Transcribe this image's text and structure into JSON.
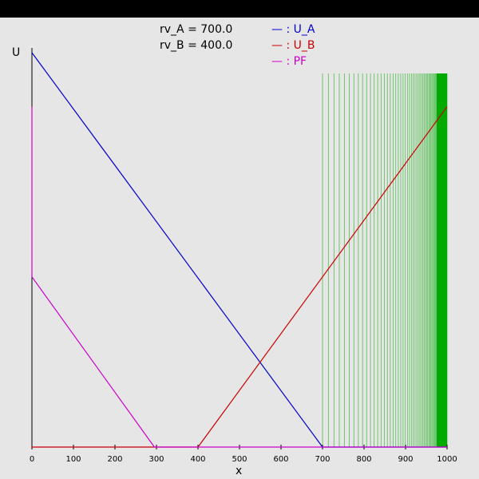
{
  "annotations": {
    "rv_a": "rv_A = 700.0",
    "rv_b": "rv_B = 400.0"
  },
  "legend": [
    {
      "label": "— : U_A",
      "color": "#0000cc"
    },
    {
      "label": "— : U_B",
      "color": "#cc0000"
    },
    {
      "label": "— : PF",
      "color": "#cc00cc"
    }
  ],
  "chart_data": {
    "type": "line",
    "xlabel": "x",
    "ylabel": "U",
    "xlim": [
      0,
      1000
    ],
    "ylim": [
      0,
      1
    ],
    "xticks": [
      0,
      100,
      200,
      300,
      400,
      500,
      600,
      700,
      800,
      900,
      1000
    ],
    "series": [
      {
        "name": "U_A",
        "color": "#0000cc",
        "x": [
          0,
          700,
          1000
        ],
        "y": [
          0.95,
          0,
          0
        ]
      },
      {
        "name": "U_B",
        "color": "#cc0000",
        "x": [
          0,
          400,
          1000
        ],
        "y": [
          0,
          0,
          0.82
        ]
      },
      {
        "name": "PF",
        "color": "#cc00cc",
        "x": [
          0,
          0,
          0,
          295,
          1000
        ],
        "y": [
          0.82,
          0.41,
          0.41,
          0,
          0
        ]
      }
    ],
    "vlines": {
      "color": "#00aa00",
      "x_start": 700,
      "x_end": 1000,
      "y_top": 0.9
    }
  }
}
